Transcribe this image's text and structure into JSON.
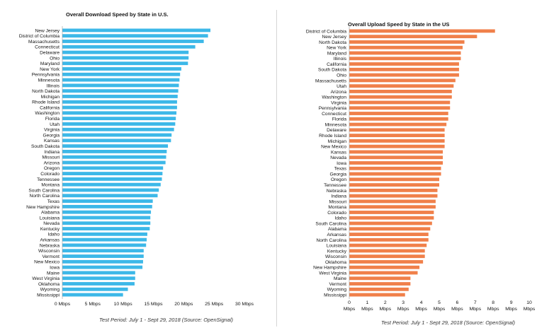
{
  "chart_data": [
    {
      "type": "bar",
      "orientation": "horizontal",
      "title": "Overall Download Speed by State in U.S.",
      "footer": "Test Period: July 1 - Sept 29, 2018 (Source: OpenSignal)",
      "color": "#3DB8E8",
      "xlim": [
        0,
        30
      ],
      "x_ticks": [
        0,
        5,
        10,
        15,
        20,
        25,
        30
      ],
      "x_tick_labels": [
        "0 Mbps",
        "5 Mbps",
        "10 Mbps",
        "15 Mbps",
        "20 Mbps",
        "25 Mbps",
        "30 Mbps"
      ],
      "grid": false,
      "categories": [
        "New Jersey",
        "District of Columbia",
        "Massachusetts",
        "Connecticut",
        "Delaware",
        "Ohio",
        "Maryland",
        "New York",
        "Pennsylvania",
        "Minnesota",
        "Illinois",
        "North Dakota",
        "Michigan",
        "Rhode Island",
        "California",
        "Washington",
        "Florida",
        "Utah",
        "Virginia",
        "Georgia",
        "Kansas",
        "South Dakota",
        "Indiana",
        "Missouri",
        "Arizona",
        "Oregon",
        "Colorado",
        "Tennessee",
        "Montana",
        "South Carolina",
        "North Carolina",
        "Texas",
        "New Hampshire",
        "Alabama",
        "Louisiana",
        "Nevada",
        "Kentucky",
        "Idaho",
        "Arkansas",
        "Nebraska",
        "Wisconsin",
        "Vermont",
        "New Mexico",
        "Iowa",
        "Maine",
        "West Virginia",
        "Oklahoma",
        "Wyoming",
        "Mississippi"
      ],
      "values": [
        24.4,
        24.0,
        23.3,
        21.9,
        20.8,
        20.8,
        20.7,
        19.6,
        19.4,
        19.3,
        19.2,
        19.1,
        19.0,
        18.9,
        18.9,
        18.8,
        18.7,
        18.6,
        18.4,
        18.0,
        17.9,
        17.4,
        17.2,
        17.1,
        17.0,
        16.6,
        16.5,
        16.4,
        16.2,
        15.9,
        15.7,
        14.9,
        14.8,
        14.6,
        14.5,
        14.5,
        14.4,
        14.0,
        13.9,
        13.8,
        13.4,
        13.4,
        13.3,
        13.2,
        12.0,
        12.0,
        11.9,
        10.8,
        10.0
      ]
    },
    {
      "type": "bar",
      "orientation": "horizontal",
      "title": "Overall Upload Speed by State in the US",
      "footer": "Test Period: July 1 - Sept 29, 2018 (Source: OpenSignal)",
      "color": "#F0804A",
      "xlim": [
        0,
        10
      ],
      "x_ticks": [
        0,
        1,
        2,
        3,
        4,
        5,
        6,
        7,
        8,
        9,
        10
      ],
      "x_tick_numbers": [
        "0",
        "1",
        "2",
        "3",
        "4",
        "5",
        "6",
        "7",
        "8",
        "9",
        "10"
      ],
      "x_tick_unit": "Mbps",
      "grid": false,
      "categories": [
        "District of Columbia",
        "New Jersey",
        "North Dakota",
        "New York",
        "Maryland",
        "Illinois",
        "California",
        "South Dakota",
        "Ohio",
        "Massachusetts",
        "Utah",
        "Arizona",
        "Washington",
        "Virginia",
        "Pennsylvania",
        "Connecticut",
        "Florida",
        "Minnesota",
        "Delaware",
        "Rhode Island",
        "Michigan",
        "New Mexico",
        "Kansas",
        "Nevada",
        "Iowa",
        "Texas",
        "Georgia",
        "Oregon",
        "Tennessee",
        "Nebraska",
        "Indiana",
        "Missouri",
        "Montana",
        "Colorado",
        "Idaho",
        "South Carolina",
        "Alabama",
        "Arkansas",
        "North Carolina",
        "Louisiana",
        "Kentucky",
        "Wisconsin",
        "Oklahoma",
        "New Hampshire",
        "West Virginia",
        "Maine",
        "Vermont",
        "Wyoming",
        "Mississippi"
      ],
      "values": [
        8.1,
        7.1,
        6.4,
        6.3,
        6.2,
        6.2,
        6.1,
        6.1,
        6.1,
        5.9,
        5.8,
        5.7,
        5.7,
        5.6,
        5.6,
        5.5,
        5.5,
        5.4,
        5.3,
        5.3,
        5.3,
        5.3,
        5.2,
        5.2,
        5.2,
        5.1,
        5.1,
        5.0,
        5.0,
        4.9,
        4.9,
        4.8,
        4.8,
        4.7,
        4.7,
        4.6,
        4.5,
        4.4,
        4.4,
        4.3,
        4.2,
        4.2,
        4.1,
        3.9,
        3.8,
        3.4,
        3.4,
        3.3,
        3.1
      ]
    }
  ]
}
